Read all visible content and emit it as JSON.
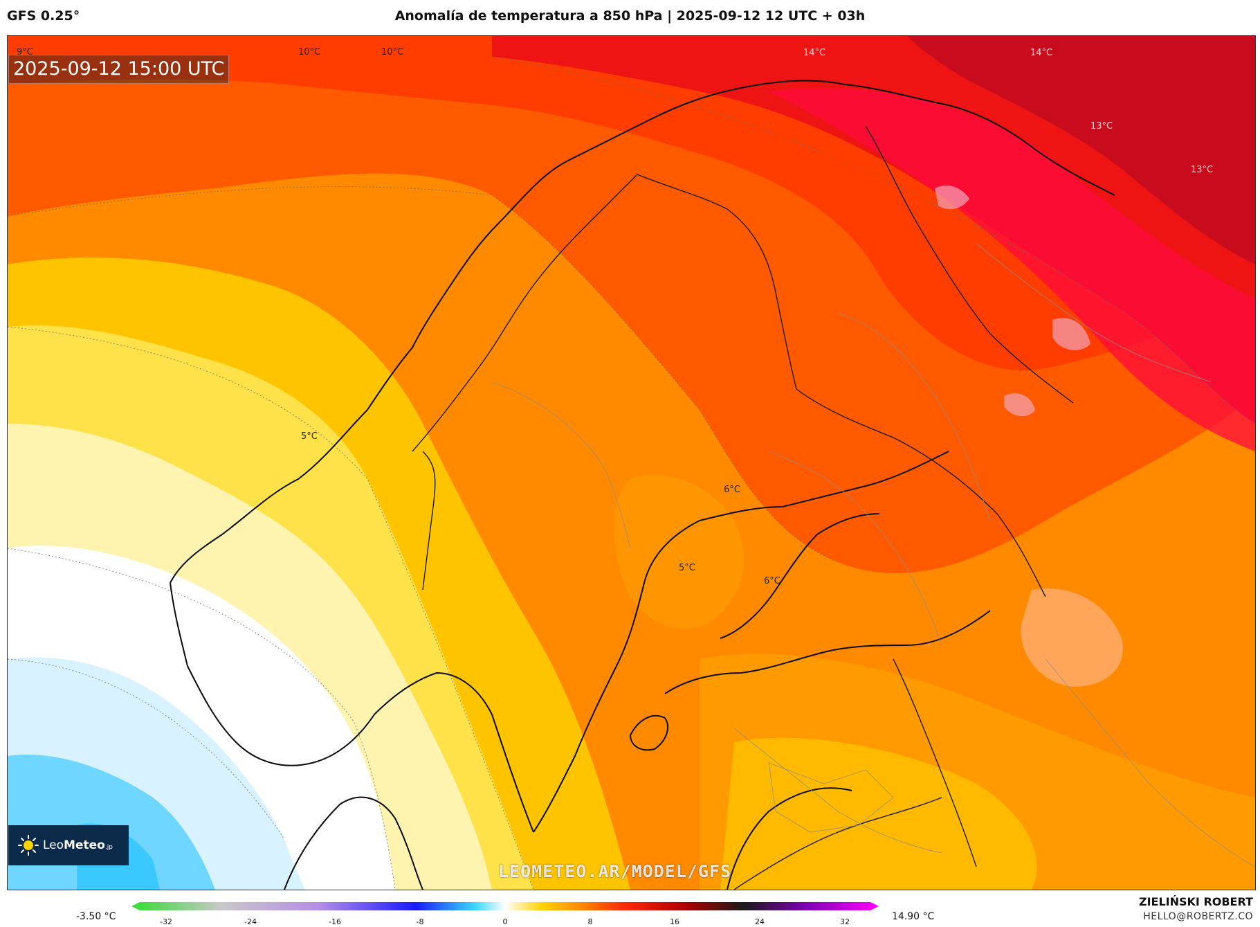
{
  "header": {
    "model": "GFS 0.25°",
    "title": "Anomalía de temperatura a 850 hPa | 2025-09-12 12 UTC + 03h"
  },
  "map": {
    "timestamp": "2025-09-12 15:00 UTC",
    "watermark": "LEOMETEO.AR/MODEL/GFS",
    "logo": {
      "prefix": "Leo",
      "suffix": "Meteo",
      "tld": ".jp",
      "icon": "sun-icon"
    },
    "contour_labels": [
      "9°C",
      "10°C",
      "10°C",
      "14°C",
      "14°C",
      "13°C",
      "13°C",
      "5°C",
      "6°C",
      "5°C",
      "6°C"
    ]
  },
  "legend": {
    "min": "-3.50 °C",
    "max": "14.90 °C",
    "ticks": [
      "-32",
      "-24",
      "-16",
      "-8",
      "0",
      "8",
      "16",
      "24",
      "32"
    ],
    "colors": [
      "#33dd33",
      "#c8c8c8",
      "#b58ee6",
      "#1a1aff",
      "#3ad8ff",
      "#ffffff",
      "#ffd200",
      "#ff8c00",
      "#ff2a00",
      "#b00000",
      "#1a1a1a",
      "#7a00b0",
      "#ff00ff"
    ]
  },
  "credit": {
    "name": "ZIELIŃSKI ROBERT",
    "email": "HELLO@ROBERTZ.CO"
  }
}
